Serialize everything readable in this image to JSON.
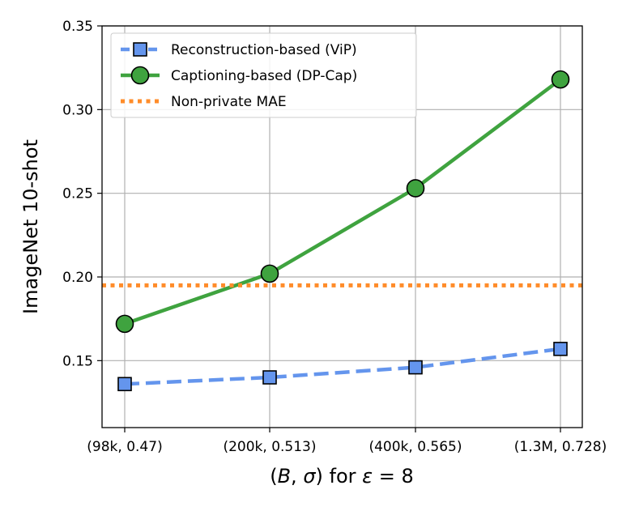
{
  "chart_data": {
    "type": "line",
    "categories": [
      "(98k, 0.47)",
      "(200k, 0.513)",
      "(400k, 0.565)",
      "(1.3M, 0.728)"
    ],
    "xlabel_parts": [
      "(",
      "B",
      ", ",
      "σ",
      ") for ",
      "ε",
      " = 8"
    ],
    "ylabel": "ImageNet 10-shot",
    "ylim": [
      0.11,
      0.35
    ],
    "yticks": [
      0.15,
      0.2,
      0.25,
      0.3,
      0.35
    ],
    "ytick_labels": [
      "0.15",
      "0.20",
      "0.25",
      "0.30",
      "0.35"
    ],
    "grid": true,
    "legend_position": "top-left",
    "series": [
      {
        "name": "Reconstruction-based (ViP)",
        "values": [
          0.136,
          0.14,
          0.146,
          0.157
        ],
        "color": "#6495ED",
        "line_style": "dashed",
        "marker": "square"
      },
      {
        "name": "Captioning-based (DP-Cap)",
        "values": [
          0.172,
          0.202,
          0.253,
          0.318
        ],
        "color": "#3FA33F",
        "line_style": "solid",
        "marker": "circle"
      },
      {
        "name": "Non-private MAE",
        "hline": 0.195,
        "color": "#FF8C2A",
        "line_style": "dotted",
        "marker": "none"
      }
    ]
  }
}
